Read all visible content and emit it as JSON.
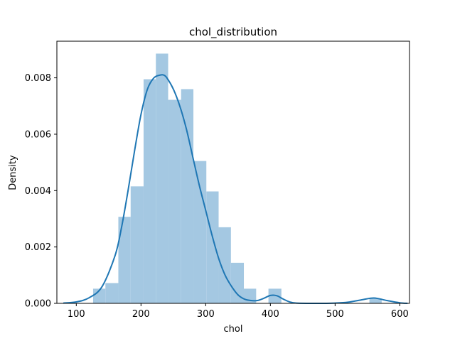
{
  "chart_data": {
    "type": "bar",
    "subtype": "histogram-with-kde",
    "title": "chol_distribution",
    "xlabel": "chol",
    "ylabel": "Density",
    "xlim": [
      70,
      615
    ],
    "ylim": [
      0,
      0.0093
    ],
    "x_ticks": [
      100,
      200,
      300,
      400,
      500,
      600
    ],
    "y_ticks": [
      0,
      0.002,
      0.004,
      0.006,
      0.008
    ],
    "y_tick_labels": [
      "0.000",
      "0.002",
      "0.004",
      "0.006",
      "0.008"
    ],
    "grid": false,
    "bar_color": "#a4c8e2",
    "line_color": "#1f77b4",
    "bins": [
      {
        "x0": 126,
        "x1": 145,
        "density": 0.00052
      },
      {
        "x0": 145,
        "x1": 165,
        "density": 0.00072
      },
      {
        "x0": 165,
        "x1": 184,
        "density": 0.00307
      },
      {
        "x0": 184,
        "x1": 204,
        "density": 0.00415
      },
      {
        "x0": 204,
        "x1": 223,
        "density": 0.00795
      },
      {
        "x0": 223,
        "x1": 242,
        "density": 0.00886
      },
      {
        "x0": 242,
        "x1": 262,
        "density": 0.00722
      },
      {
        "x0": 262,
        "x1": 281,
        "density": 0.0076
      },
      {
        "x0": 281,
        "x1": 301,
        "density": 0.00505
      },
      {
        "x0": 301,
        "x1": 320,
        "density": 0.00397
      },
      {
        "x0": 320,
        "x1": 339,
        "density": 0.0027
      },
      {
        "x0": 339,
        "x1": 359,
        "density": 0.00144
      },
      {
        "x0": 359,
        "x1": 378,
        "density": 0.00052
      },
      {
        "x0": 378,
        "x1": 397,
        "density": 0.0
      },
      {
        "x0": 397,
        "x1": 417,
        "density": 0.00052
      },
      {
        "x0": 417,
        "x1": 436,
        "density": 0.0
      },
      {
        "x0": 436,
        "x1": 456,
        "density": 0.0
      },
      {
        "x0": 456,
        "x1": 475,
        "density": 0.0
      },
      {
        "x0": 475,
        "x1": 494,
        "density": 0.0
      },
      {
        "x0": 494,
        "x1": 514,
        "density": 0.0
      },
      {
        "x0": 514,
        "x1": 533,
        "density": 0.0
      },
      {
        "x0": 533,
        "x1": 553,
        "density": 0.0
      },
      {
        "x0": 553,
        "x1": 572,
        "density": 0.00017
      }
    ],
    "kde": {
      "x": [
        80,
        100,
        120,
        140,
        160,
        170,
        180,
        190,
        200,
        210,
        220,
        230,
        235,
        240,
        250,
        260,
        270,
        280,
        290,
        300,
        310,
        320,
        330,
        340,
        350,
        360,
        370,
        380,
        390,
        400,
        410,
        420,
        430,
        440,
        460,
        480,
        500,
        520,
        540,
        560,
        580,
        600,
        612
      ],
      "y": [
        1e-05,
        5e-05,
        0.0002,
        0.0006,
        0.0017,
        0.0027,
        0.004,
        0.0054,
        0.0067,
        0.0076,
        0.008,
        0.0081,
        0.0081,
        0.008,
        0.0076,
        0.007,
        0.0062,
        0.0052,
        0.0042,
        0.0033,
        0.0024,
        0.0016,
        0.001,
        0.0006,
        0.0003,
        0.00015,
        0.0001,
        0.0001,
        0.00018,
        0.00028,
        0.00027,
        0.00015,
        5e-05,
        1e-05,
        0.0,
        0.0,
        1e-05,
        4e-05,
        0.00012,
        0.00019,
        0.0001,
        2e-05,
        0.0
      ]
    }
  }
}
